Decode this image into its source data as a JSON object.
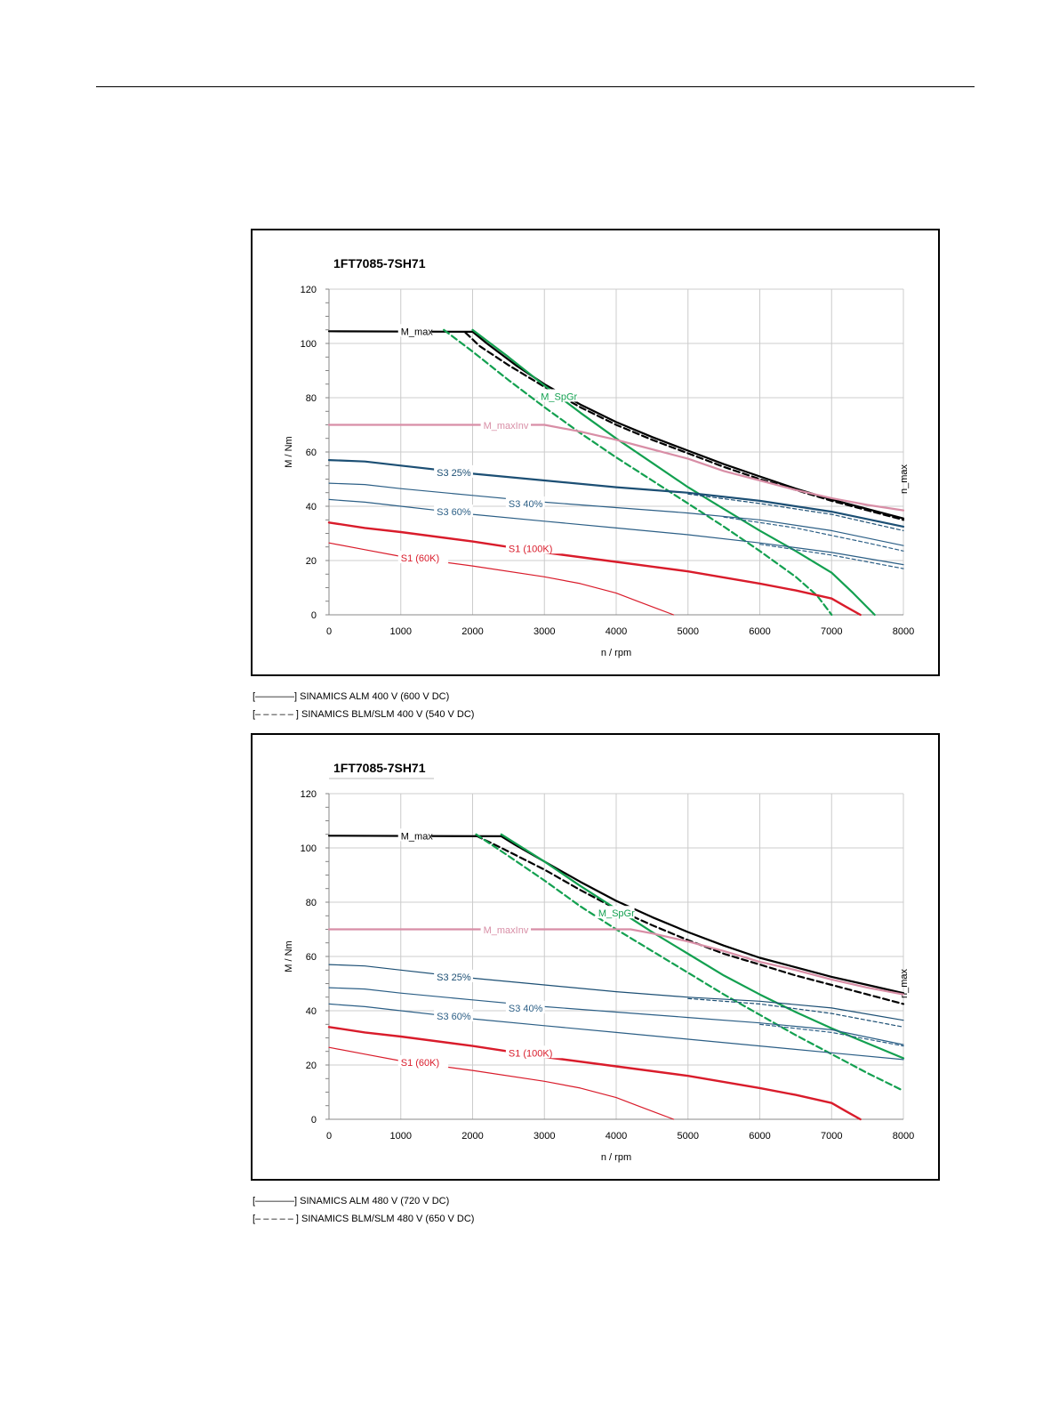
{
  "colors": {
    "m_max": "#000000",
    "m_spgr": "#13a050",
    "m_maxinv": "#d88ea6",
    "s3_25": "#1c4f74",
    "s3_40": "#2c5f86",
    "s3_60": "#2c5f86",
    "s1_100k": "#d91c2b",
    "s1_60k": "#d91c2b"
  },
  "chart_data": [
    {
      "type": "line",
      "title": "1FT7085-7SH71",
      "xlabel": "n / rpm",
      "ylabel": "M / Nm",
      "xlim": [
        0,
        8000
      ],
      "ylim": [
        0,
        120
      ],
      "x_ticks": [
        "0",
        "1000",
        "2000",
        "3000",
        "4000",
        "5000",
        "6000",
        "7000",
        "8000"
      ],
      "y_ticks": [
        "0",
        "20",
        "40",
        "60",
        "80",
        "100",
        "120"
      ],
      "grid": true,
      "vertical_label": "n_max",
      "legend": [
        "[————] SINAMICS ALM 400 V (600 V DC)",
        "[– – – – – ] SINAMICS BLM/SLM 400 V (540 V DC)"
      ],
      "series": [
        {
          "label": "M_max",
          "color_key": "m_max",
          "style": "solid",
          "width": 2.2,
          "label_at": [
            1000,
            104.5
          ],
          "x": [
            0,
            2000,
            2200,
            2600,
            3000,
            3500,
            4000,
            4500,
            5000,
            5500,
            6000,
            6500,
            7000,
            7500,
            8000
          ],
          "y": [
            104.5,
            104.3,
            100,
            92,
            85,
            77.5,
            71,
            65.5,
            60.5,
            55.5,
            51,
            46.5,
            42.5,
            39,
            35.5
          ]
        },
        {
          "label": "",
          "color_key": "m_max",
          "style": "dashed",
          "width": 2.2,
          "x": [
            1900,
            2100,
            2500,
            3000,
            3500,
            4000,
            4500,
            5000,
            5500,
            6000,
            6500,
            7000,
            7500,
            8000
          ],
          "y": [
            104,
            99,
            92,
            84,
            76.5,
            70,
            64.5,
            59.5,
            54.5,
            50,
            46,
            42,
            38.5,
            35
          ]
        },
        {
          "label": "M_SpGr",
          "color_key": "m_spgr",
          "style": "solid",
          "width": 2.2,
          "label_at": [
            2950,
            80.5
          ],
          "x": [
            2000,
            2500,
            3000,
            3500,
            4000,
            4500,
            5000,
            5500,
            6000,
            6500,
            7000,
            7300,
            7600
          ],
          "y": [
            105,
            95,
            84.5,
            74.5,
            65,
            56,
            47,
            39,
            31,
            23.5,
            15.5,
            8,
            0
          ]
        },
        {
          "label": "",
          "color_key": "m_spgr",
          "style": "dashed",
          "width": 2.2,
          "x": [
            1600,
            2000,
            2500,
            3000,
            3500,
            4000,
            4500,
            5000,
            5500,
            6000,
            6500,
            6800,
            7000
          ],
          "y": [
            105,
            97,
            86.5,
            76.5,
            67,
            58,
            49.5,
            41,
            32.5,
            23.5,
            14,
            7,
            0
          ]
        },
        {
          "label": "M_maxInv",
          "color_key": "m_maxinv",
          "style": "solid",
          "width": 2.2,
          "label_at": [
            2150,
            69.8
          ],
          "x": [
            0,
            3000,
            3500,
            4000,
            4500,
            5000,
            5500,
            6000,
            6500,
            7000,
            7500,
            8000
          ],
          "y": [
            70,
            70,
            67.5,
            64.5,
            61,
            57.5,
            53,
            49.5,
            46,
            43,
            40.5,
            38.5
          ]
        },
        {
          "label": "S3 25%",
          "color_key": "s3_25",
          "style": "solid",
          "width": 2.2,
          "label_at": [
            1500,
            52.5
          ],
          "x": [
            0,
            500,
            1000,
            2000,
            3000,
            4000,
            5000,
            6000,
            7000,
            8000
          ],
          "y": [
            57,
            56.5,
            55,
            52,
            49.5,
            47,
            45,
            42,
            38,
            32.5
          ]
        },
        {
          "label": "",
          "color_key": "s3_25",
          "style": "dashed",
          "width": 1.2,
          "x": [
            5000,
            6000,
            7000,
            8000
          ],
          "y": [
            44.5,
            41,
            37,
            31
          ]
        },
        {
          "label": "S3 40%",
          "color_key": "s3_40",
          "style": "solid",
          "width": 1.2,
          "label_at": [
            2500,
            41
          ],
          "x": [
            0,
            500,
            1000,
            2000,
            3000,
            4000,
            5000,
            6000,
            7000,
            8000
          ],
          "y": [
            48.5,
            48,
            46.5,
            44,
            41.5,
            39.5,
            37.5,
            35,
            31,
            25.5
          ]
        },
        {
          "label": "",
          "color_key": "s3_40",
          "style": "dashed",
          "width": 1.2,
          "x": [
            5500,
            6500,
            7500,
            8000
          ],
          "y": [
            36,
            32,
            26.5,
            23.5
          ]
        },
        {
          "label": "S3 60%",
          "color_key": "s3_60",
          "style": "solid",
          "width": 1.2,
          "label_at": [
            1500,
            38
          ],
          "x": [
            0,
            500,
            1000,
            2000,
            3000,
            4000,
            5000,
            6000,
            7000,
            8000
          ],
          "y": [
            42.5,
            41.5,
            40,
            37,
            34.5,
            32,
            29.5,
            26.5,
            23,
            18.5
          ]
        },
        {
          "label": "",
          "color_key": "s3_60",
          "style": "dashed",
          "width": 1.2,
          "x": [
            6000,
            7000,
            7500,
            8000
          ],
          "y": [
            26,
            22,
            19.5,
            17
          ]
        },
        {
          "label": "S1 (100K)",
          "color_key": "s1_100k",
          "style": "solid",
          "width": 2.4,
          "label_at": [
            2500,
            24.5
          ],
          "x": [
            0,
            500,
            1000,
            2000,
            3000,
            4000,
            5000,
            6000,
            6500,
            7000,
            7200,
            7400
          ],
          "y": [
            34,
            32,
            30.5,
            27,
            23,
            19.5,
            16,
            11.5,
            9,
            6,
            3,
            0
          ]
        },
        {
          "label": "S1 (60K)",
          "color_key": "s1_60k",
          "style": "solid",
          "width": 1.2,
          "label_at": [
            1000,
            21
          ],
          "x": [
            0,
            500,
            1000,
            2000,
            3000,
            3500,
            4000,
            4300,
            4600,
            4800
          ],
          "y": [
            26.5,
            24,
            21.5,
            18,
            14,
            11.5,
            8,
            5,
            2,
            0
          ]
        }
      ]
    },
    {
      "type": "line",
      "title": "1FT7085-7SH71",
      "xlabel": "n / rpm",
      "ylabel": "M / Nm",
      "xlim": [
        0,
        8000
      ],
      "ylim": [
        0,
        120
      ],
      "x_ticks": [
        "0",
        "1000",
        "2000",
        "3000",
        "4000",
        "5000",
        "6000",
        "7000",
        "8000"
      ],
      "y_ticks": [
        "0",
        "20",
        "40",
        "60",
        "80",
        "100",
        "120"
      ],
      "grid": true,
      "vertical_label": "n_max",
      "legend": [
        "[————] SINAMICS ALM 480 V (720 V DC)",
        "[– – – – – ] SINAMICS BLM/SLM 480 V (650 V DC)"
      ],
      "series": [
        {
          "label": "M_max",
          "color_key": "m_max",
          "style": "solid",
          "width": 2.2,
          "label_at": [
            1000,
            104.5
          ],
          "x": [
            0,
            2400,
            2600,
            3000,
            3500,
            4000,
            4500,
            5000,
            5500,
            6000,
            6500,
            7000,
            7500,
            8000
          ],
          "y": [
            104.5,
            104.3,
            101,
            95,
            87.5,
            80.5,
            74.5,
            69,
            64,
            59.5,
            56,
            52.5,
            49.5,
            46.5
          ]
        },
        {
          "label": "",
          "color_key": "m_max",
          "style": "dashed",
          "width": 2.2,
          "x": [
            2050,
            2400,
            3000,
            3500,
            4000,
            4500,
            5000,
            5500,
            6000,
            6500,
            7000,
            7500,
            8000
          ],
          "y": [
            104.5,
            100,
            92,
            84.5,
            77.5,
            71.5,
            66,
            61,
            57,
            53,
            49.5,
            46,
            42.5
          ]
        },
        {
          "label": "M_SpGr",
          "color_key": "m_spgr",
          "style": "solid",
          "width": 2.2,
          "label_at": [
            3750,
            76
          ],
          "x": [
            2400,
            3000,
            3500,
            4000,
            4500,
            5000,
            5500,
            6000,
            6500,
            7000,
            7500,
            8000
          ],
          "y": [
            105,
            95,
            86,
            77.5,
            69,
            61,
            53,
            46,
            39.5,
            33.5,
            28,
            22.5
          ]
        },
        {
          "label": "",
          "color_key": "m_spgr",
          "style": "dashed",
          "width": 2.2,
          "x": [
            2050,
            2500,
            3000,
            3500,
            4000,
            4500,
            5000,
            5500,
            6000,
            6500,
            7000,
            7500,
            8000
          ],
          "y": [
            105,
            97,
            88,
            78.5,
            70,
            62,
            54,
            46,
            38.5,
            31,
            24,
            17,
            10.5
          ]
        },
        {
          "label": "M_maxInv",
          "color_key": "m_maxinv",
          "style": "solid",
          "width": 2.2,
          "label_at": [
            2150,
            69.8
          ],
          "x": [
            0,
            4200,
            4500,
            5000,
            5500,
            6000,
            6500,
            7000,
            7500,
            8000
          ],
          "y": [
            70,
            70,
            68.5,
            65.5,
            62,
            58,
            55,
            51.5,
            48.5,
            46
          ]
        },
        {
          "label": "S3 25%",
          "color_key": "s3_25",
          "style": "solid",
          "width": 1.2,
          "label_at": [
            1500,
            52.5
          ],
          "x": [
            0,
            500,
            1000,
            2000,
            3000,
            4000,
            5000,
            6000,
            7000,
            8000
          ],
          "y": [
            57,
            56.5,
            55,
            52,
            49.5,
            47,
            45,
            43.5,
            41,
            36.5
          ]
        },
        {
          "label": "",
          "color_key": "s3_25",
          "style": "dashed",
          "width": 1.2,
          "x": [
            5000,
            6000,
            7000,
            8000
          ],
          "y": [
            44.5,
            42.5,
            39,
            34
          ]
        },
        {
          "label": "S3 40%",
          "color_key": "s3_40",
          "style": "solid",
          "width": 1.2,
          "label_at": [
            2500,
            41
          ],
          "x": [
            0,
            500,
            1000,
            2000,
            3000,
            4000,
            5000,
            6000,
            7000,
            8000
          ],
          "y": [
            48.5,
            48,
            46.5,
            44,
            41.5,
            39.5,
            37.5,
            35.5,
            33,
            27.5
          ]
        },
        {
          "label": "",
          "color_key": "s3_40",
          "style": "dashed",
          "width": 1.2,
          "x": [
            6000,
            7000,
            7500,
            8000
          ],
          "y": [
            35,
            32,
            29.5,
            27
          ]
        },
        {
          "label": "S3 60%",
          "color_key": "s3_60",
          "style": "solid",
          "width": 1.2,
          "label_at": [
            1500,
            38
          ],
          "x": [
            0,
            500,
            1000,
            2000,
            3000,
            4000,
            5000,
            6000,
            7000,
            8000
          ],
          "y": [
            42.5,
            41.5,
            40,
            37,
            34.5,
            32,
            29.5,
            27,
            24.5,
            22
          ]
        },
        {
          "label": "S1 (100K)",
          "color_key": "s1_100k",
          "style": "solid",
          "width": 2.4,
          "label_at": [
            2500,
            24.5
          ],
          "x": [
            0,
            500,
            1000,
            2000,
            3000,
            4000,
            5000,
            6000,
            6500,
            7000,
            7200,
            7400
          ],
          "y": [
            34,
            32,
            30.5,
            27,
            23,
            19.5,
            16,
            11.5,
            9,
            6,
            3,
            0
          ]
        },
        {
          "label": "S1 (60K)",
          "color_key": "s1_60k",
          "style": "solid",
          "width": 1.2,
          "label_at": [
            1000,
            21
          ],
          "x": [
            0,
            500,
            1000,
            2000,
            3000,
            3500,
            4000,
            4300,
            4600,
            4800
          ],
          "y": [
            26.5,
            24,
            21.5,
            18,
            14,
            11.5,
            8,
            5,
            2,
            0
          ]
        }
      ]
    }
  ]
}
